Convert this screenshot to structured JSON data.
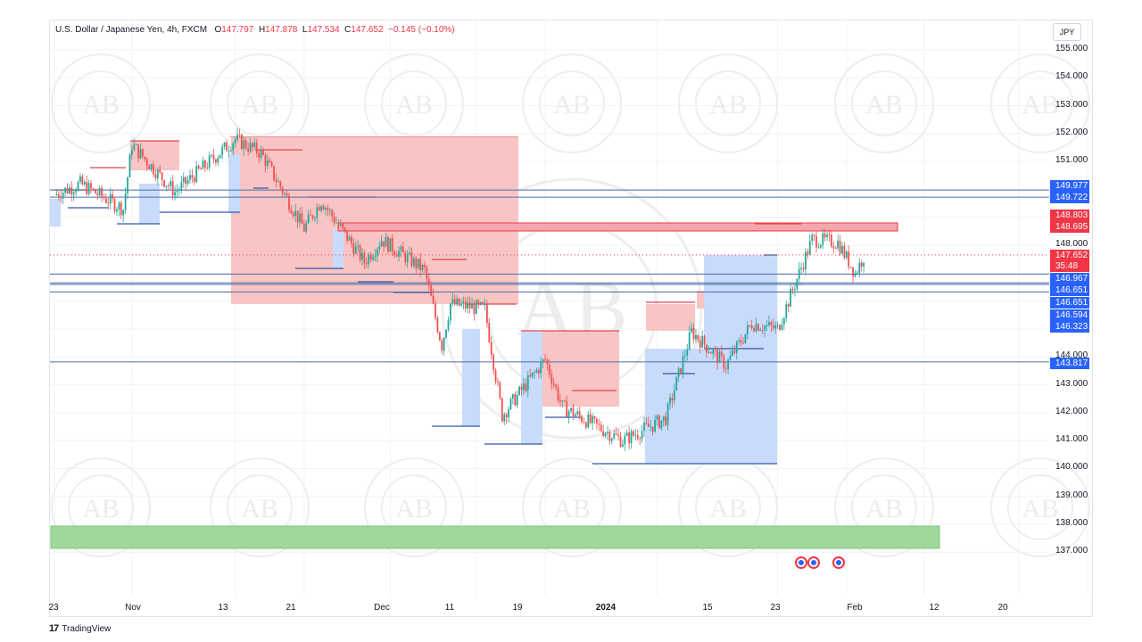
{
  "header": {
    "symbol": "U.S. Dollar / Japanese Yen, 4h, FXCM",
    "open_label": "O",
    "open": "147.797",
    "high_label": "H",
    "high": "147.878",
    "low_label": "L",
    "low": "147.534",
    "close_label": "C",
    "close": "147.652",
    "change": "−0.145 (−0.10%)"
  },
  "currency_button": "JPY",
  "y_axis": {
    "ticks": [
      "155.000",
      "154.000",
      "153.000",
      "152.000",
      "151.000",
      "148.000",
      "144.000",
      "143.000",
      "142.000",
      "141.000",
      "140.000",
      "139.000",
      "138.000",
      "137.000"
    ]
  },
  "x_axis": {
    "ticks": [
      "23",
      "Nov",
      "13",
      "21",
      "Dec",
      "11",
      "19",
      "2024",
      "15",
      "23",
      "Feb",
      "12",
      "20"
    ]
  },
  "price_labels": [
    {
      "text": "149.977",
      "color": "blue"
    },
    {
      "text": "149.722",
      "color": "blue"
    },
    {
      "text": "148.803",
      "color": "red"
    },
    {
      "text": "148.695",
      "color": "red"
    },
    {
      "text": "147.652",
      "color": "red"
    },
    {
      "text": "35:48",
      "color": "red"
    },
    {
      "text": "146.967",
      "color": "blue"
    },
    {
      "text": "146.651",
      "color": "blue"
    },
    {
      "text": "146.651",
      "color": "blue"
    },
    {
      "text": "146.594",
      "color": "blue"
    },
    {
      "text": "146.323",
      "color": "blue"
    },
    {
      "text": "143.817",
      "color": "blue"
    }
  ],
  "footer": {
    "brand": "TradingView"
  },
  "watermark_text": "AB",
  "colors": {
    "up": "#26a69a",
    "down": "#ef5350",
    "accent_blue": "#2962ff",
    "accent_red": "#f23645",
    "zone_red": "#f8c4c4",
    "zone_blue": "#c9dbfb",
    "zone_green": "#9ed89b"
  },
  "chart_data": {
    "type": "candlestick",
    "symbol": "USDJPY",
    "timeframe": "4h",
    "source": "FXCM",
    "ylim": [
      136.4,
      155.6
    ],
    "horizontal_levels": [
      149.977,
      149.722,
      146.967,
      146.651,
      146.594,
      146.323,
      143.817
    ],
    "supply_zone": [
      148.695,
      148.803
    ],
    "demand_zone_green": [
      137.3,
      138.1
    ],
    "close_path": [
      {
        "date": "2023-10-23",
        "price": 149.8
      },
      {
        "date": "2023-10-26",
        "price": 150.2
      },
      {
        "date": "2023-10-31",
        "price": 149.3
      },
      {
        "date": "2023-11-01",
        "price": 151.6
      },
      {
        "date": "2023-11-06",
        "price": 149.9
      },
      {
        "date": "2023-11-13",
        "price": 151.8
      },
      {
        "date": "2023-11-16",
        "price": 151.3
      },
      {
        "date": "2023-11-21",
        "price": 148.6
      },
      {
        "date": "2023-11-23",
        "price": 149.6
      },
      {
        "date": "2023-11-28",
        "price": 147.4
      },
      {
        "date": "2023-11-30",
        "price": 148.2
      },
      {
        "date": "2023-12-05",
        "price": 147.1
      },
      {
        "date": "2023-12-07",
        "price": 144.4
      },
      {
        "date": "2023-12-08",
        "price": 145.9
      },
      {
        "date": "2023-12-12",
        "price": 145.7
      },
      {
        "date": "2023-12-14",
        "price": 141.9
      },
      {
        "date": "2023-12-19",
        "price": 143.9
      },
      {
        "date": "2023-12-21",
        "price": 142.2
      },
      {
        "date": "2023-12-28",
        "price": 141.0
      },
      {
        "date": "2024-01-02",
        "price": 141.8
      },
      {
        "date": "2024-01-05",
        "price": 144.9
      },
      {
        "date": "2024-01-09",
        "price": 143.7
      },
      {
        "date": "2024-01-12",
        "price": 145.2
      },
      {
        "date": "2024-01-15",
        "price": 145.0
      },
      {
        "date": "2024-01-19",
        "price": 148.2
      },
      {
        "date": "2024-01-22",
        "price": 148.1
      },
      {
        "date": "2024-01-24",
        "price": 147.0
      },
      {
        "date": "2024-01-25",
        "price": 147.6
      }
    ]
  }
}
